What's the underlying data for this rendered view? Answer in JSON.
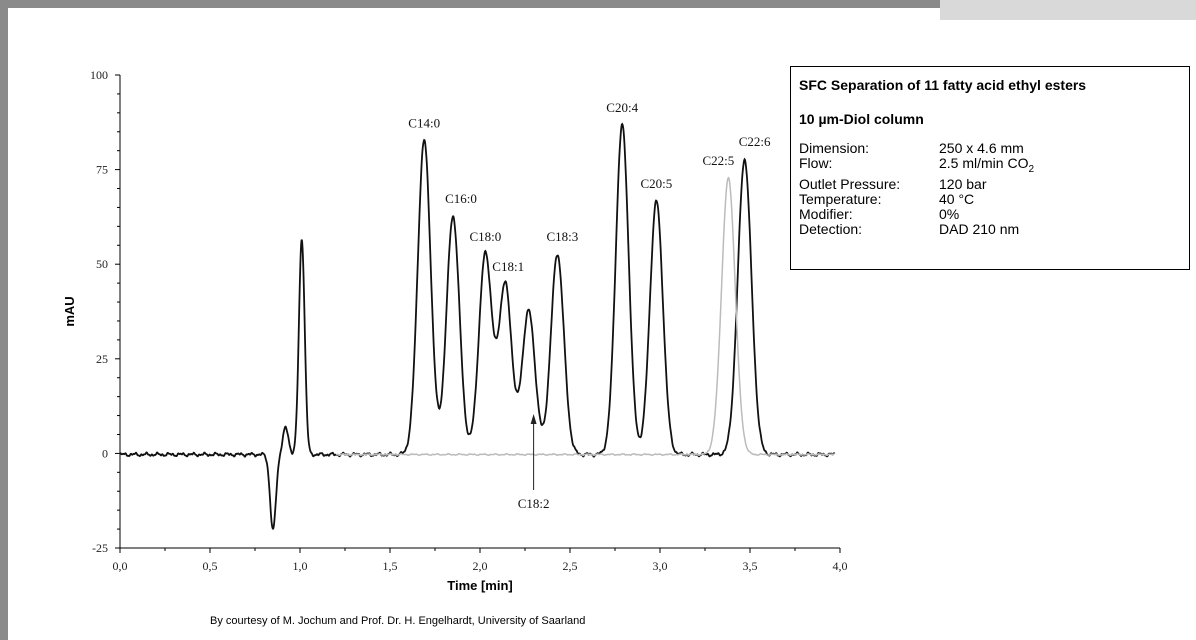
{
  "chart_data": {
    "type": "line",
    "xlabel": "Time [min]",
    "ylabel": "mAU",
    "xlim": [
      0,
      4
    ],
    "ylim": [
      -25,
      100
    ],
    "x_ticks": [
      "0,0",
      "0,5",
      "1,0",
      "1,5",
      "2,0",
      "2,5",
      "3,0",
      "3,5",
      "4,0"
    ],
    "y_ticks": [
      "100",
      "75",
      "50",
      "25",
      "0",
      "-25"
    ],
    "grid": false,
    "series": [
      {
        "color": "#111111",
        "peaks": [
          {
            "time": 0.85,
            "height": -20
          },
          {
            "time": 0.92,
            "height": 7
          },
          {
            "time": 1.01,
            "height": 57
          },
          {
            "time": 1.69,
            "height": 83
          },
          {
            "time": 1.85,
            "height": 63
          },
          {
            "time": 2.03,
            "height": 53
          },
          {
            "time": 2.14,
            "height": 45
          },
          {
            "time": 2.27,
            "height": 38
          },
          {
            "time": 2.43,
            "height": 53
          },
          {
            "time": 2.79,
            "height": 87
          },
          {
            "time": 2.98,
            "height": 67
          },
          {
            "time": 3.47,
            "height": 78
          }
        ]
      },
      {
        "color": "#bbbbbb",
        "peaks": [
          {
            "time": 3.38,
            "height": 73
          }
        ]
      }
    ],
    "annotations": [
      {
        "text": "C14:0",
        "time": 1.69,
        "height": 83,
        "color": "#111111"
      },
      {
        "text": "C16:0",
        "time": 1.85,
        "height": 63,
        "color": "#111111"
      },
      {
        "text": "C18:0",
        "time": 2.03,
        "height": 53,
        "color": "#111111"
      },
      {
        "text": "C18:1",
        "time": 2.14,
        "height": 45,
        "color": "#111111"
      },
      {
        "text": "C18:2",
        "time": 2.27,
        "height": 10,
        "color": "#111111"
      },
      {
        "text": "C18:3",
        "time": 2.43,
        "height": 53,
        "color": "#111111"
      },
      {
        "text": "C20:4",
        "time": 2.79,
        "height": 87,
        "color": "#111111"
      },
      {
        "text": "C20:5",
        "time": 2.98,
        "height": 67,
        "color": "#111111"
      },
      {
        "text": "C22:5",
        "time": 3.38,
        "height": 73,
        "color": "#bbbbbb"
      },
      {
        "text": "C22:6",
        "time": 3.47,
        "height": 78,
        "color": "#111111"
      }
    ]
  },
  "info": {
    "title": "SFC Separation of 11 fatty acid ethyl esters",
    "column": "10 µm-Diol column",
    "specs": [
      {
        "label": "Dimension:",
        "value": "250 x 4.6 mm"
      },
      {
        "label": "Flow:",
        "value": "2.5 ml/min CO",
        "sub": "2"
      },
      {
        "label": "Outlet Pressure:",
        "value": "120 bar"
      },
      {
        "label": "Temperature:",
        "value": "40 °C"
      },
      {
        "label": "Modifier:",
        "value": "0%"
      },
      {
        "label": "Detection:",
        "value": "DAD 210 nm"
      }
    ]
  },
  "credit": "By courtesy of M. Jochum and Prof. Dr. H. Engelhardt, University of Saarland"
}
